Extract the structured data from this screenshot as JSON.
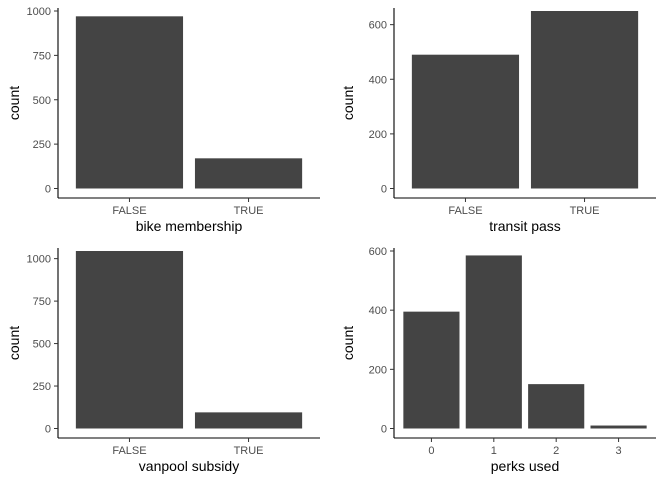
{
  "chart_data": [
    {
      "type": "bar",
      "categories": [
        "FALSE",
        "TRUE"
      ],
      "values": [
        970,
        170
      ],
      "xlabel": "bike membership",
      "ylabel": "count",
      "ylim": [
        0,
        1000
      ],
      "yticks": [
        0,
        250,
        500,
        750,
        1000
      ],
      "grid": false,
      "bar_color": "#444444"
    },
    {
      "type": "bar",
      "categories": [
        "FALSE",
        "TRUE"
      ],
      "values": [
        490,
        650
      ],
      "xlabel": "transit pass",
      "ylabel": "count",
      "ylim": [
        0,
        650
      ],
      "yticks": [
        0,
        200,
        400,
        600
      ],
      "grid": false,
      "bar_color": "#444444"
    },
    {
      "type": "bar",
      "categories": [
        "FALSE",
        "TRUE"
      ],
      "values": [
        1045,
        95
      ],
      "xlabel": "vanpool subsidy",
      "ylabel": "count",
      "ylim": [
        0,
        1045
      ],
      "yticks": [
        0,
        250,
        500,
        750,
        1000
      ],
      "grid": false,
      "bar_color": "#444444"
    },
    {
      "type": "bar",
      "categories": [
        "0",
        "1",
        "2",
        "3"
      ],
      "values": [
        395,
        585,
        150,
        10
      ],
      "xlabel": "perks used",
      "ylabel": "count",
      "ylim": [
        0,
        600
      ],
      "yticks": [
        0,
        200,
        400,
        600
      ],
      "grid": false,
      "bar_color": "#444444"
    }
  ]
}
